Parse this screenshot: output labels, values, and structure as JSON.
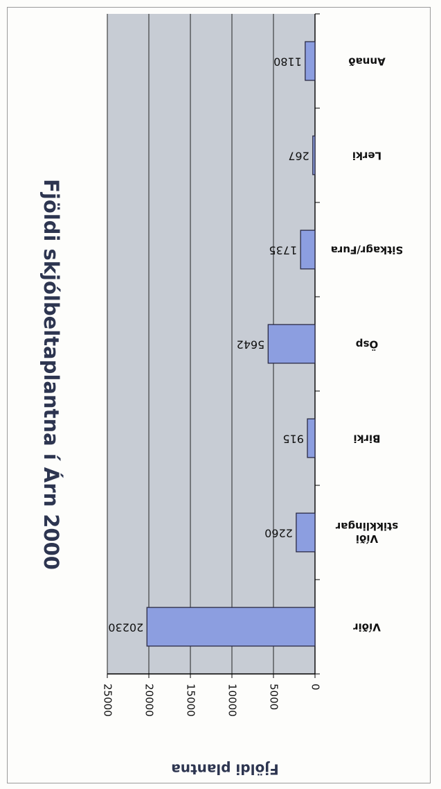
{
  "chart_data": {
    "type": "bar",
    "title": "Fjöldi skjólbeltaplantna í Árn 2000",
    "xlabel": "",
    "ylabel": "Fjöldi plantna",
    "categories": [
      "Víðir",
      "Víði\nstikklingar",
      "Birki",
      "Ösp",
      "Sitkagr/Fura",
      "Lerki",
      "Annað"
    ],
    "values": [
      20230,
      2260,
      915,
      5642,
      1735,
      267,
      1180
    ],
    "data_labels": [
      "20230",
      "2260",
      "915",
      "5642",
      "1735",
      "267",
      "1180"
    ],
    "ylim": [
      0,
      25000
    ],
    "yticks": [
      0,
      5000,
      10000,
      15000,
      20000,
      25000
    ],
    "grid": true,
    "legend": "none",
    "orientation": "rotated 180°",
    "colors": {
      "plot_area": "#c7ccd4",
      "bar_fill": "#8c9ee0",
      "bar_stroke": "#2a2a44",
      "gridline": "#222222",
      "text": "#111111"
    }
  }
}
